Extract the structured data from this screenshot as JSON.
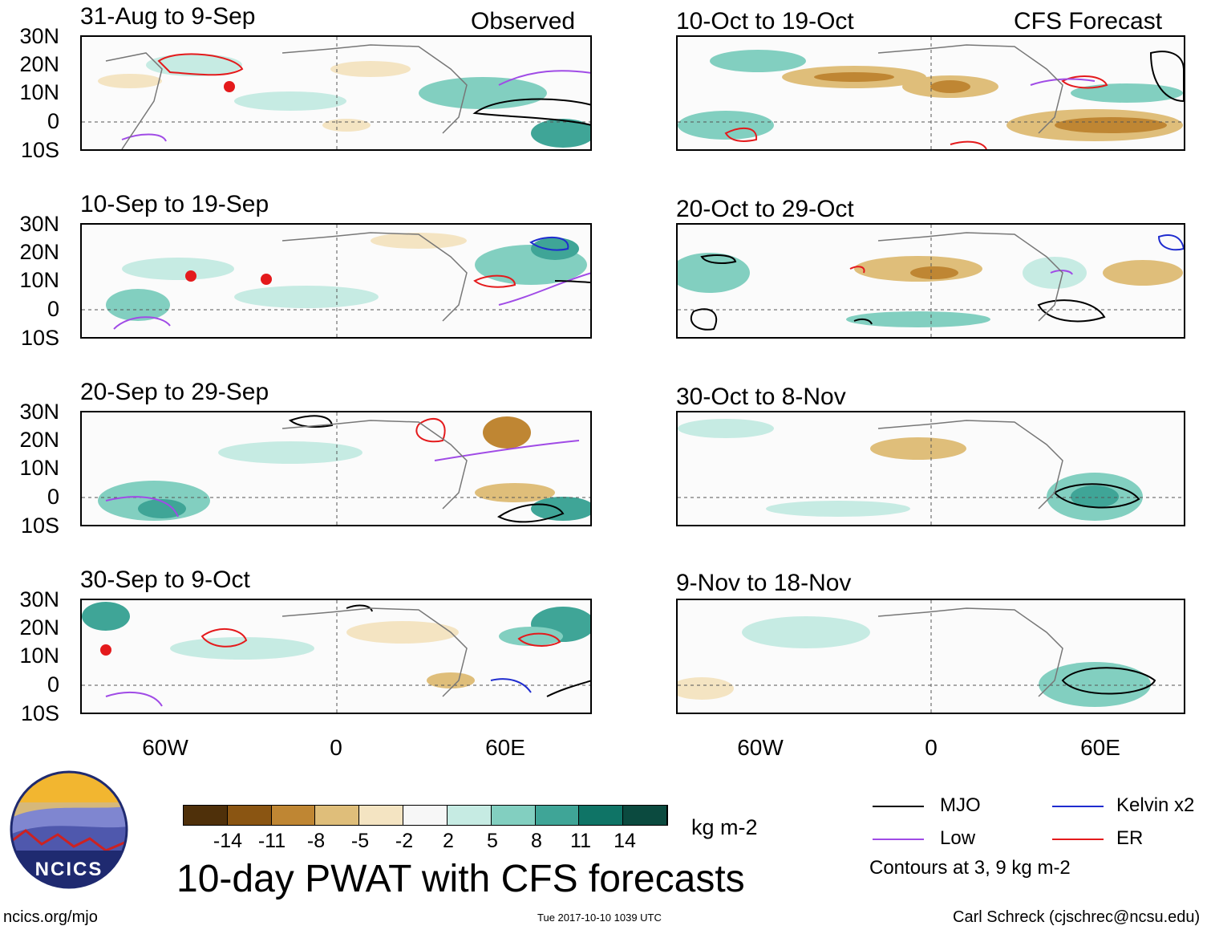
{
  "colors": {
    "mjo": "#000000",
    "kelvin": "#1f2ccf",
    "low": "#a04be6",
    "er": "#e41a1c",
    "scale": [
      "#4f300a",
      "#8a5512",
      "#bf8633",
      "#dfbe7a",
      "#f4e4c2",
      "#f7f7f7",
      "#c6ebe3",
      "#82cfc0",
      "#3fa597",
      "#0f7466",
      "#0b4a3f"
    ]
  },
  "panels": [
    {
      "id": "obs-1",
      "title": "31-Aug to 9-Sep",
      "kind_label": "Observed"
    },
    {
      "id": "obs-2",
      "title": "10-Sep to 19-Sep",
      "kind_label": ""
    },
    {
      "id": "obs-3",
      "title": "20-Sep to 29-Sep",
      "kind_label": ""
    },
    {
      "id": "obs-4",
      "title": "30-Sep to 9-Oct",
      "kind_label": ""
    },
    {
      "id": "fc-1",
      "title": "10-Oct to 19-Oct",
      "kind_label": "CFS Forecast"
    },
    {
      "id": "fc-2",
      "title": "20-Oct to 29-Oct",
      "kind_label": ""
    },
    {
      "id": "fc-3",
      "title": "30-Oct to 8-Nov",
      "kind_label": ""
    },
    {
      "id": "fc-4",
      "title": "9-Nov to 18-Nov",
      "kind_label": ""
    }
  ],
  "latitude_ticks": [
    "30N",
    "20N",
    "10N",
    "0",
    "10S"
  ],
  "longitude_ticks": [
    "60W",
    "0",
    "60E"
  ],
  "colorbar": {
    "ticks": [
      "-14",
      "-11",
      "-8",
      "-5",
      "-2",
      "2",
      "5",
      "8",
      "11",
      "14"
    ],
    "units": "kg m-2"
  },
  "main_title": "10-day PWAT with CFS forecasts",
  "legend": {
    "items": [
      {
        "label": "MJO",
        "color_key": "mjo"
      },
      {
        "label": "Kelvin x2",
        "color_key": "kelvin"
      },
      {
        "label": "Low",
        "color_key": "low"
      },
      {
        "label": "ER",
        "color_key": "er"
      }
    ],
    "contours_note": "Contours at 3, 9 kg m-2"
  },
  "logo": {
    "text": "NCICS"
  },
  "footer": {
    "url": "ncics.org/mjo",
    "timestamp": "Tue 2017-10-10 1039 UTC",
    "author": "Carl Schreck (cjschrec@ncsu.edu)"
  }
}
